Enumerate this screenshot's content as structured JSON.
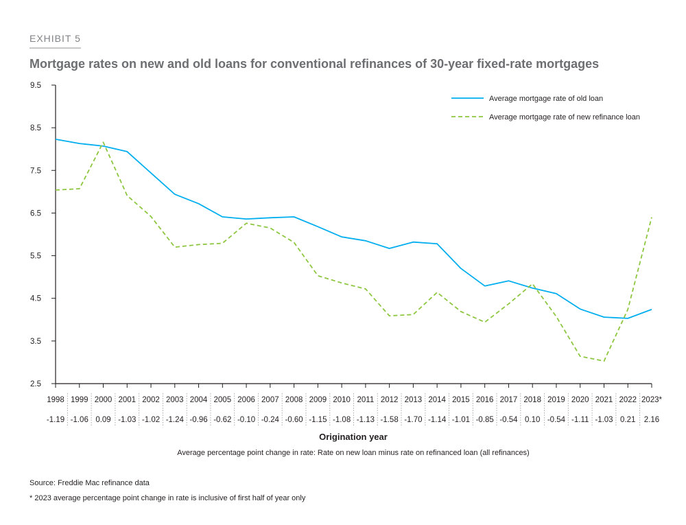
{
  "exhibit": "EXHIBIT 5",
  "chart_data": {
    "type": "line",
    "title": "Mortgage rates on new and old loans for conventional refinances of 30-year fixed-rate mortgages",
    "xlabel": "Origination year",
    "ylabel": "",
    "ylim": [
      2.5,
      9.5
    ],
    "yticks": [
      "9.5",
      "8.5",
      "7.5",
      "6.5",
      "5.5",
      "4.5",
      "3.5",
      "2.5"
    ],
    "categories": [
      "1998",
      "1999",
      "2000",
      "2001",
      "2002",
      "2003",
      "2004",
      "2005",
      "2006",
      "2007",
      "2008",
      "2009",
      "2010",
      "2011",
      "2012",
      "2013",
      "2014",
      "2015",
      "2016",
      "2017",
      "2018",
      "2019",
      "2020",
      "2021",
      "2022",
      "2023*"
    ],
    "series": [
      {
        "name": "Average mortgage rate of old loan",
        "color": "#00aeef",
        "style": "solid",
        "values": [
          8.23,
          8.13,
          8.07,
          7.94,
          7.44,
          6.94,
          6.72,
          6.41,
          6.36,
          6.39,
          6.41,
          6.18,
          5.94,
          5.85,
          5.67,
          5.82,
          5.78,
          5.2,
          4.79,
          4.91,
          4.74,
          4.61,
          4.25,
          4.06,
          4.03,
          4.24
        ]
      },
      {
        "name": "Average mortgage rate of new refinance loan",
        "color": "#8dc63f",
        "style": "dashed",
        "values": [
          7.04,
          7.07,
          8.16,
          6.91,
          6.42,
          5.7,
          5.76,
          5.79,
          6.26,
          6.15,
          5.81,
          5.03,
          4.86,
          4.72,
          4.09,
          4.12,
          4.64,
          4.19,
          3.94,
          4.37,
          4.84,
          4.07,
          3.14,
          3.03,
          4.24,
          6.4
        ]
      }
    ],
    "change_row": [
      "-1.19",
      "-1.06",
      "0.09",
      "-1.03",
      "-1.02",
      "-1.24",
      "-0.96",
      "-0.62",
      "-0.10",
      "-0.24",
      "-0.60",
      "-1.15",
      "-1.08",
      "-1.13",
      "-1.58",
      "-1.70",
      "-1.14",
      "-1.01",
      "-0.85",
      "-0.54",
      "0.10",
      "-0.54",
      "-1.11",
      "-1.03",
      "0.21",
      "2.16"
    ],
    "change_row_label": "Average percentage point change in rate: Rate on new loan minus rate on refinanced loan (all refinances)",
    "legend_position": "top-right",
    "grid": false
  },
  "source": "Source: Freddie Mac refinance data",
  "footnote": "* 2023 average percentage point change in rate is inclusive of first half of year only"
}
